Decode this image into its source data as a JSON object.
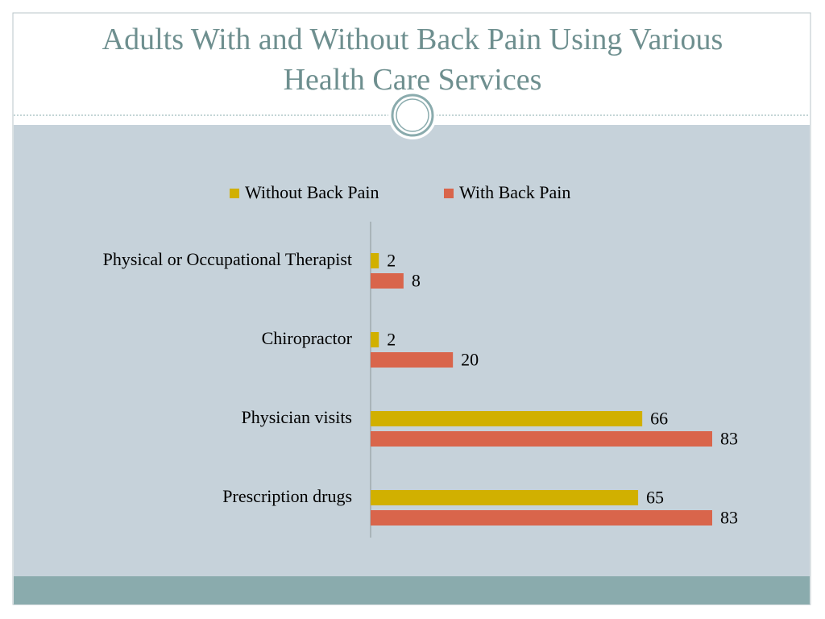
{
  "chart_data": {
    "type": "bar",
    "orientation": "horizontal",
    "title": "Adults With and Without Back Pain Using Various Health Care Services",
    "categories": [
      "Physical or Occupational Therapist",
      "Chiropractor",
      "Physician visits",
      "Prescription drugs"
    ],
    "series": [
      {
        "name": "Without Back Pain",
        "color": "#d1b000",
        "values": [
          2,
          2,
          66,
          65
        ]
      },
      {
        "name": "With Back Pain",
        "color": "#d9654b",
        "values": [
          8,
          20,
          83,
          83
        ]
      }
    ],
    "legend": "top"
  }
}
